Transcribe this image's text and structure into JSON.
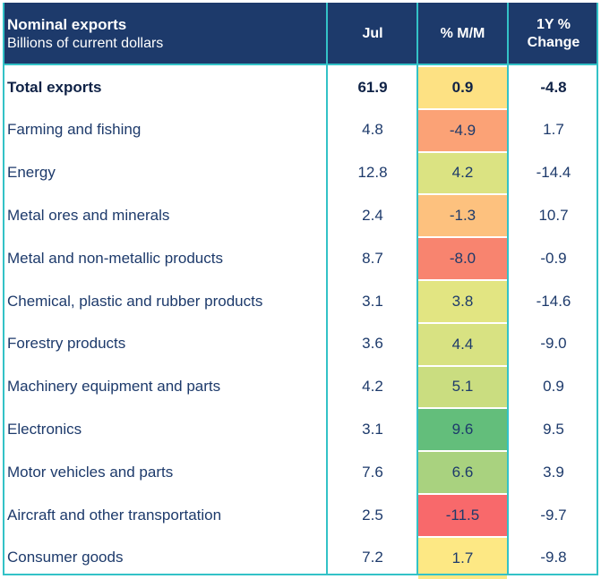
{
  "header": {
    "title": "Nominal exports",
    "subtitle": "Billions of current dollars",
    "col_jul": "Jul",
    "col_mm": "% M/M",
    "col_yy_line1": "1Y %",
    "col_yy_line2": "Change"
  },
  "colors": {
    "header_bg": "#1d3a6b",
    "grid": "#33c2c7",
    "text": "#1d3a6b"
  },
  "chart_data": {
    "type": "table",
    "title": "Nominal exports",
    "subtitle": "Billions of current dollars",
    "columns": [
      "Jul",
      "% M/M",
      "1Y % Change"
    ],
    "rows": [
      {
        "name": "Total exports",
        "jul": "61.9",
        "mm": "0.9",
        "yy": "-4.8",
        "bold": true,
        "mm_color": "#fde183"
      },
      {
        "name": "Farming and fishing",
        "jul": "4.8",
        "mm": "-4.9",
        "yy": "1.7",
        "mm_color": "#fba276"
      },
      {
        "name": "Energy",
        "jul": "12.8",
        "mm": "4.2",
        "yy": "-14.4",
        "mm_color": "#dbe382"
      },
      {
        "name": "Metal ores and minerals",
        "jul": "2.4",
        "mm": "-1.3",
        "yy": "10.7",
        "mm_color": "#fdc17e"
      },
      {
        "name": "Metal and non-metallic products",
        "jul": "8.7",
        "mm": "-8.0",
        "yy": "-0.9",
        "mm_color": "#f8846f"
      },
      {
        "name": "Chemical, plastic and rubber products",
        "jul": "3.1",
        "mm": "3.8",
        "yy": "-14.6",
        "mm_color": "#e2e582"
      },
      {
        "name": "Forestry products",
        "jul": "3.6",
        "mm": "4.4",
        "yy": "-9.0",
        "mm_color": "#d8e282"
      },
      {
        "name": "Machinery equipment and parts",
        "jul": "4.2",
        "mm": "5.1",
        "yy": "0.9",
        "mm_color": "#cadd80"
      },
      {
        "name": "Electronics",
        "jul": "3.1",
        "mm": "9.6",
        "yy": "9.5",
        "mm_color": "#63be7b"
      },
      {
        "name": "Motor vehicles and parts",
        "jul": "7.6",
        "mm": "6.6",
        "yy": "3.9",
        "mm_color": "#a9d27f"
      },
      {
        "name": "Aircraft and other transportation",
        "jul": "2.5",
        "mm": "-11.5",
        "yy": "-9.7",
        "mm_color": "#f8696b"
      },
      {
        "name": "Consumer goods",
        "jul": "7.2",
        "mm": "1.7",
        "yy": "-9.8",
        "mm_color": "#fde884"
      }
    ]
  }
}
